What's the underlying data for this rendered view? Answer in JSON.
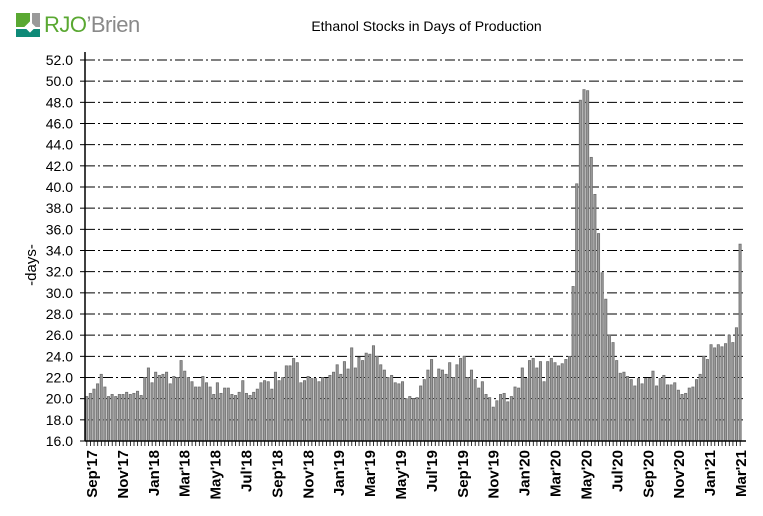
{
  "logo": {
    "text_green": "RJO",
    "text_gray": "’Brien"
  },
  "chart_data": {
    "type": "bar",
    "title": "Ethanol Stocks in Days of Production",
    "xlabel": "",
    "ylabel": "-days-",
    "ylim": [
      16,
      52
    ],
    "y_ticks": [
      "16.0",
      "18.0",
      "20.0",
      "22.0",
      "24.0",
      "26.0",
      "28.0",
      "30.0",
      "32.0",
      "34.0",
      "36.0",
      "38.0",
      "40.0",
      "42.0",
      "44.0",
      "46.0",
      "48.0",
      "50.0",
      "52.0"
    ],
    "x_tick_labels": [
      "Sep'17",
      "Nov'17",
      "Jan'18",
      "Mar'18",
      "May'18",
      "Jul'18",
      "Sep'18",
      "Nov'18",
      "Jan'19",
      "Mar'19",
      "May'19",
      "Jul'19",
      "Sep'19",
      "Nov'19",
      "Jan'20",
      "Mar'20",
      "May'20",
      "Jul'20",
      "Sep'20",
      "Nov'20",
      "Jan'21",
      "Mar'21"
    ],
    "grid": true,
    "frequency": "weekly",
    "values": [
      20.2,
      20.5,
      20.9,
      21.4,
      22.3,
      21.1,
      20.2,
      20.4,
      20.2,
      20.4,
      20.4,
      20.6,
      20.4,
      20.5,
      20.7,
      20.3,
      22.0,
      22.9,
      21.5,
      22.5,
      22.2,
      22.3,
      22.5,
      21.4,
      22.1,
      22.0,
      23.6,
      22.6,
      22.0,
      21.6,
      21.1,
      21.1,
      22.1,
      21.5,
      21.1,
      20.4,
      21.5,
      20.5,
      21.0,
      21.0,
      20.4,
      20.3,
      20.6,
      21.7,
      20.5,
      20.3,
      20.6,
      20.9,
      21.5,
      21.7,
      21.6,
      20.9,
      22.5,
      21.7,
      22.0,
      23.1,
      23.1,
      23.8,
      23.4,
      21.5,
      21.7,
      22.1,
      21.9,
      21.9,
      21.6,
      22.0,
      21.9,
      22.2,
      22.5,
      23.2,
      22.3,
      23.5,
      22.8,
      24.8,
      22.9,
      23.9,
      23.6,
      24.3,
      24.2,
      25.0,
      24.0,
      23.2,
      22.7,
      22.0,
      22.2,
      21.5,
      21.4,
      21.6,
      20.0,
      20.2,
      20.0,
      20.1,
      21.2,
      21.8,
      22.7,
      23.7,
      22.0,
      22.8,
      22.7,
      22.3,
      23.4,
      22.0,
      23.2,
      23.8,
      24.0,
      22.0,
      22.7,
      21.8,
      21.0,
      21.6,
      20.4,
      20.1,
      19.2,
      19.8,
      20.4,
      20.5,
      19.7,
      20.2,
      21.1,
      21.0,
      22.9,
      21.9,
      23.6,
      23.8,
      22.9,
      23.5,
      21.6,
      23.5,
      23.8,
      23.4,
      23.1,
      23.3,
      23.7,
      24.0,
      30.6,
      40.3,
      48.2,
      49.2,
      49.1,
      42.8,
      39.3,
      35.6,
      31.9,
      29.4,
      26.0,
      25.3,
      23.6,
      22.4,
      22.5,
      22.1,
      21.8,
      21.2,
      21.9,
      21.4,
      21.9,
      21.9,
      22.6,
      21.2,
      21.9,
      22.2,
      21.3,
      21.3,
      21.5,
      20.8,
      20.4,
      20.5,
      21.0,
      21.1,
      21.8,
      22.3,
      24.0,
      23.7,
      25.1,
      24.8,
      25.1,
      24.9,
      25.2,
      26.0,
      25.3,
      26.7,
      34.6
    ],
    "colors": {
      "bar_fill": "#9a9a9a",
      "bar_stroke": "#6e6e6e",
      "grid": "#000000",
      "logo_green": "#5aa832",
      "logo_teal": "#0f8a78",
      "logo_gray": "#8a8a8a"
    }
  }
}
